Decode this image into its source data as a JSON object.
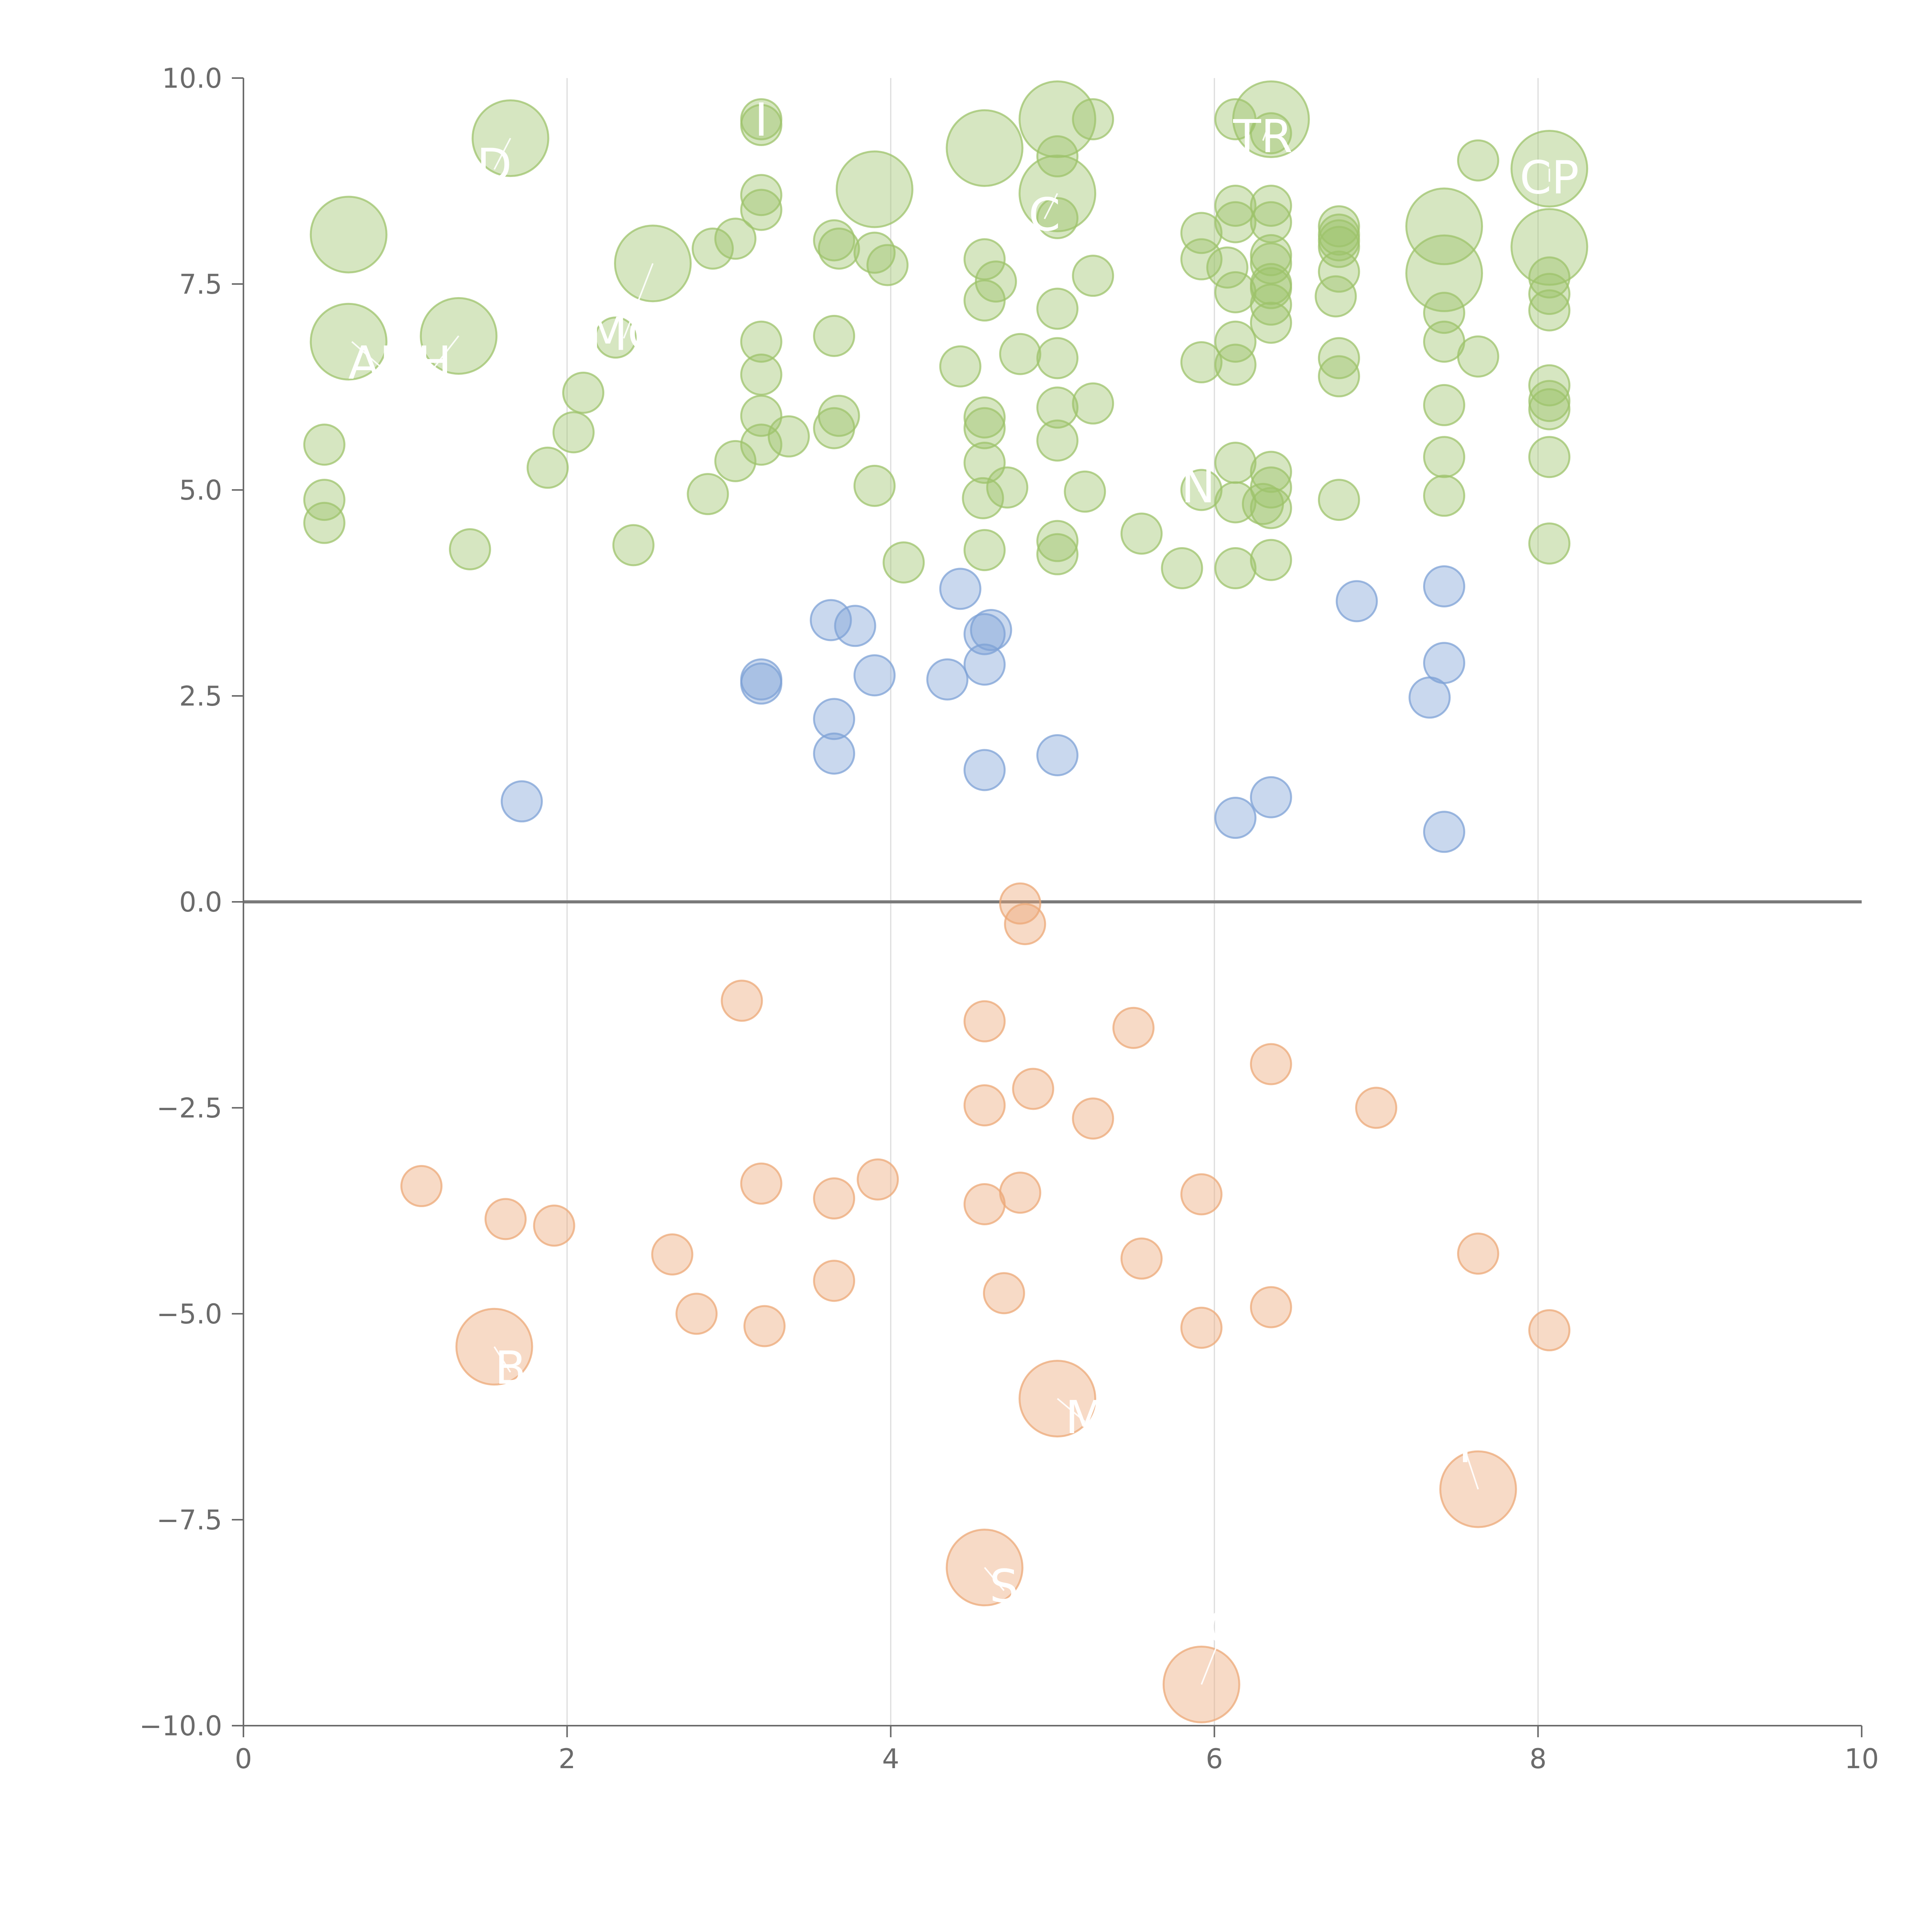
{
  "chart_data": {
    "type": "scatter",
    "title": "",
    "xlabel": "",
    "ylabel": "",
    "xlim": [
      0,
      10
    ],
    "ylim": [
      -10,
      10
    ],
    "x_ticks": [
      0,
      2,
      4,
      6,
      8,
      10
    ],
    "y_ticks": [
      -10,
      -7.5,
      -5,
      -2.5,
      0,
      2.5,
      5,
      7.5,
      10
    ],
    "x_tick_labels": [
      "0",
      "2",
      "4",
      "6",
      "8",
      "10"
    ],
    "y_tick_labels": [
      "−10.0",
      "−7.5",
      "−5.0",
      "−2.5",
      "0.0",
      "2.5",
      "5.0",
      "7.5",
      "10.0"
    ],
    "vertical_gridlines": [
      2,
      4,
      6,
      8
    ],
    "zero_line": 0,
    "colors": {
      "positive": "#9dc36b",
      "neutral": "#7ea2d6",
      "negative": "#eca877",
      "label": "#ffffff",
      "axis": "#6b6b6b",
      "grid": "#dcdcdc",
      "zero_line": "#7a7a7a"
    },
    "series": [
      {
        "name": "positive",
        "color": "#9dc36b",
        "points": [
          {
            "x": 0.65,
            "y": 8.1,
            "s": 3
          },
          {
            "x": 0.65,
            "y": 6.8,
            "s": 3
          },
          {
            "x": 1.33,
            "y": 6.87,
            "s": 3
          },
          {
            "x": 1.65,
            "y": 9.27,
            "s": 3
          },
          {
            "x": 2.53,
            "y": 7.75,
            "s": 3
          },
          {
            "x": 3.9,
            "y": 8.65,
            "s": 3
          },
          {
            "x": 4.58,
            "y": 9.15,
            "s": 3
          },
          {
            "x": 5.03,
            "y": 9.5,
            "s": 3
          },
          {
            "x": 5.03,
            "y": 8.6,
            "s": 3
          },
          {
            "x": 6.35,
            "y": 9.5,
            "s": 3
          },
          {
            "x": 7.42,
            "y": 8.2,
            "s": 3
          },
          {
            "x": 7.42,
            "y": 7.63,
            "s": 3
          },
          {
            "x": 8.07,
            "y": 8.9,
            "s": 3
          },
          {
            "x": 8.07,
            "y": 7.95,
            "s": 3
          },
          {
            "x": 0.5,
            "y": 5.55,
            "s": 1
          },
          {
            "x": 0.5,
            "y": 4.88,
            "s": 1
          },
          {
            "x": 0.5,
            "y": 4.6,
            "s": 1
          },
          {
            "x": 1.4,
            "y": 4.28,
            "s": 1
          },
          {
            "x": 1.88,
            "y": 5.27,
            "s": 1
          },
          {
            "x": 2.04,
            "y": 5.7,
            "s": 1
          },
          {
            "x": 2.1,
            "y": 6.18,
            "s": 1
          },
          {
            "x": 2.3,
            "y": 6.85,
            "s": 1
          },
          {
            "x": 2.41,
            "y": 4.33,
            "s": 1
          },
          {
            "x": 2.87,
            "y": 4.95,
            "s": 1
          },
          {
            "x": 2.9,
            "y": 7.93,
            "s": 1
          },
          {
            "x": 3.04,
            "y": 5.35,
            "s": 1
          },
          {
            "x": 3.04,
            "y": 8.05,
            "s": 1
          },
          {
            "x": 3.2,
            "y": 9.5,
            "s": 1
          },
          {
            "x": 3.2,
            "y": 9.43,
            "s": 1
          },
          {
            "x": 3.2,
            "y": 8.58,
            "s": 1
          },
          {
            "x": 3.2,
            "y": 8.4,
            "s": 1
          },
          {
            "x": 3.2,
            "y": 6.8,
            "s": 1
          },
          {
            "x": 3.2,
            "y": 6.4,
            "s": 1
          },
          {
            "x": 3.2,
            "y": 5.9,
            "s": 1
          },
          {
            "x": 3.2,
            "y": 5.55,
            "s": 1
          },
          {
            "x": 3.37,
            "y": 5.65,
            "s": 1
          },
          {
            "x": 3.65,
            "y": 8.03,
            "s": 1
          },
          {
            "x": 3.68,
            "y": 7.93,
            "s": 1
          },
          {
            "x": 3.65,
            "y": 6.87,
            "s": 1
          },
          {
            "x": 3.68,
            "y": 5.9,
            "s": 1
          },
          {
            "x": 3.65,
            "y": 5.75,
            "s": 1
          },
          {
            "x": 3.9,
            "y": 7.88,
            "s": 1
          },
          {
            "x": 3.98,
            "y": 7.73,
            "s": 1
          },
          {
            "x": 3.9,
            "y": 5.05,
            "s": 1
          },
          {
            "x": 4.08,
            "y": 4.12,
            "s": 1
          },
          {
            "x": 4.43,
            "y": 6.5,
            "s": 1
          },
          {
            "x": 4.58,
            "y": 7.8,
            "s": 1
          },
          {
            "x": 4.58,
            "y": 7.3,
            "s": 1
          },
          {
            "x": 4.65,
            "y": 7.53,
            "s": 1
          },
          {
            "x": 4.58,
            "y": 5.88,
            "s": 1
          },
          {
            "x": 4.58,
            "y": 5.75,
            "s": 1
          },
          {
            "x": 4.58,
            "y": 5.33,
            "s": 1
          },
          {
            "x": 4.57,
            "y": 4.9,
            "s": 1
          },
          {
            "x": 4.58,
            "y": 4.27,
            "s": 1
          },
          {
            "x": 4.72,
            "y": 5.03,
            "s": 1
          },
          {
            "x": 4.8,
            "y": 6.65,
            "s": 1
          },
          {
            "x": 5.03,
            "y": 9.05,
            "s": 1
          },
          {
            "x": 5.03,
            "y": 8.3,
            "s": 1
          },
          {
            "x": 5.03,
            "y": 7.2,
            "s": 1
          },
          {
            "x": 5.03,
            "y": 6.6,
            "s": 1
          },
          {
            "x": 5.03,
            "y": 6.0,
            "s": 1
          },
          {
            "x": 5.03,
            "y": 5.6,
            "s": 1
          },
          {
            "x": 5.03,
            "y": 4.38,
            "s": 1
          },
          {
            "x": 5.03,
            "y": 4.22,
            "s": 1
          },
          {
            "x": 5.25,
            "y": 9.5,
            "s": 1
          },
          {
            "x": 5.25,
            "y": 7.6,
            "s": 1
          },
          {
            "x": 5.25,
            "y": 6.05,
            "s": 1
          },
          {
            "x": 5.2,
            "y": 4.98,
            "s": 1
          },
          {
            "x": 5.55,
            "y": 4.47,
            "s": 1
          },
          {
            "x": 5.8,
            "y": 4.05,
            "s": 1
          },
          {
            "x": 5.92,
            "y": 8.12,
            "s": 1
          },
          {
            "x": 5.92,
            "y": 7.8,
            "s": 1
          },
          {
            "x": 5.92,
            "y": 6.55,
            "s": 1
          },
          {
            "x": 5.92,
            "y": 5.0,
            "s": 1
          },
          {
            "x": 6.13,
            "y": 9.5,
            "s": 1
          },
          {
            "x": 6.13,
            "y": 8.45,
            "s": 1
          },
          {
            "x": 6.13,
            "y": 8.25,
            "s": 1
          },
          {
            "x": 6.08,
            "y": 7.7,
            "s": 1
          },
          {
            "x": 6.13,
            "y": 7.4,
            "s": 1
          },
          {
            "x": 6.13,
            "y": 6.8,
            "s": 1
          },
          {
            "x": 6.13,
            "y": 6.52,
            "s": 1
          },
          {
            "x": 6.13,
            "y": 5.33,
            "s": 1
          },
          {
            "x": 6.13,
            "y": 4.85,
            "s": 1
          },
          {
            "x": 6.13,
            "y": 4.05,
            "s": 1
          },
          {
            "x": 6.35,
            "y": 9.33,
            "s": 1
          },
          {
            "x": 6.35,
            "y": 8.45,
            "s": 1
          },
          {
            "x": 6.35,
            "y": 8.25,
            "s": 1
          },
          {
            "x": 6.35,
            "y": 7.85,
            "s": 1
          },
          {
            "x": 6.35,
            "y": 7.75,
            "s": 1
          },
          {
            "x": 6.35,
            "y": 7.5,
            "s": 1
          },
          {
            "x": 6.35,
            "y": 7.45,
            "s": 1
          },
          {
            "x": 6.35,
            "y": 7.25,
            "s": 1
          },
          {
            "x": 6.35,
            "y": 7.03,
            "s": 1
          },
          {
            "x": 6.35,
            "y": 5.22,
            "s": 1
          },
          {
            "x": 6.35,
            "y": 5.03,
            "s": 1
          },
          {
            "x": 6.35,
            "y": 4.78,
            "s": 1
          },
          {
            "x": 6.3,
            "y": 4.83,
            "s": 1
          },
          {
            "x": 6.35,
            "y": 4.15,
            "s": 1
          },
          {
            "x": 6.77,
            "y": 8.2,
            "s": 1
          },
          {
            "x": 6.77,
            "y": 8.1,
            "s": 1
          },
          {
            "x": 6.77,
            "y": 8.03,
            "s": 1
          },
          {
            "x": 6.77,
            "y": 7.95,
            "s": 1
          },
          {
            "x": 6.77,
            "y": 7.65,
            "s": 1
          },
          {
            "x": 6.75,
            "y": 7.35,
            "s": 1
          },
          {
            "x": 6.77,
            "y": 6.6,
            "s": 1
          },
          {
            "x": 6.77,
            "y": 6.38,
            "s": 1
          },
          {
            "x": 6.77,
            "y": 4.88,
            "s": 1
          },
          {
            "x": 7.42,
            "y": 7.15,
            "s": 1
          },
          {
            "x": 7.42,
            "y": 6.8,
            "s": 1
          },
          {
            "x": 7.42,
            "y": 6.03,
            "s": 1
          },
          {
            "x": 7.42,
            "y": 5.4,
            "s": 1
          },
          {
            "x": 7.42,
            "y": 4.93,
            "s": 1
          },
          {
            "x": 7.63,
            "y": 9.0,
            "s": 1
          },
          {
            "x": 7.63,
            "y": 6.62,
            "s": 1
          },
          {
            "x": 8.07,
            "y": 7.58,
            "s": 1
          },
          {
            "x": 8.07,
            "y": 7.38,
            "s": 1
          },
          {
            "x": 8.07,
            "y": 7.18,
            "s": 1
          },
          {
            "x": 8.07,
            "y": 6.27,
            "s": 1
          },
          {
            "x": 8.07,
            "y": 6.08,
            "s": 1
          },
          {
            "x": 8.07,
            "y": 5.98,
            "s": 1
          },
          {
            "x": 8.07,
            "y": 5.4,
            "s": 1
          },
          {
            "x": 8.07,
            "y": 4.35,
            "s": 1
          }
        ]
      },
      {
        "name": "neutral",
        "color": "#7ea2d6",
        "points": [
          {
            "x": 1.72,
            "y": 1.22,
            "s": 1
          },
          {
            "x": 3.2,
            "y": 2.7,
            "s": 1
          },
          {
            "x": 3.2,
            "y": 2.65,
            "s": 1
          },
          {
            "x": 3.63,
            "y": 3.42,
            "s": 1
          },
          {
            "x": 3.78,
            "y": 3.35,
            "s": 1
          },
          {
            "x": 3.65,
            "y": 2.22,
            "s": 1
          },
          {
            "x": 3.65,
            "y": 1.8,
            "s": 1
          },
          {
            "x": 3.9,
            "y": 2.75,
            "s": 1
          },
          {
            "x": 4.35,
            "y": 2.7,
            "s": 1
          },
          {
            "x": 4.43,
            "y": 3.8,
            "s": 1
          },
          {
            "x": 4.58,
            "y": 3.25,
            "s": 1
          },
          {
            "x": 4.62,
            "y": 3.3,
            "s": 1
          },
          {
            "x": 4.58,
            "y": 2.88,
            "s": 1
          },
          {
            "x": 4.58,
            "y": 1.6,
            "s": 1
          },
          {
            "x": 5.03,
            "y": 1.78,
            "s": 1
          },
          {
            "x": 6.13,
            "y": 1.02,
            "s": 1
          },
          {
            "x": 6.35,
            "y": 1.27,
            "s": 1
          },
          {
            "x": 6.88,
            "y": 3.65,
            "s": 1
          },
          {
            "x": 7.33,
            "y": 2.48,
            "s": 1
          },
          {
            "x": 7.42,
            "y": 3.83,
            "s": 1
          },
          {
            "x": 7.42,
            "y": 2.9,
            "s": 1
          },
          {
            "x": 7.42,
            "y": 0.85,
            "s": 1
          }
        ]
      },
      {
        "name": "negative",
        "color": "#eca877",
        "points": [
          {
            "x": 4.8,
            "y": -0.02,
            "s": 1
          },
          {
            "x": 4.83,
            "y": -0.27,
            "s": 1
          },
          {
            "x": 3.08,
            "y": -1.2,
            "s": 1
          },
          {
            "x": 4.58,
            "y": -1.45,
            "s": 1
          },
          {
            "x": 5.5,
            "y": -1.53,
            "s": 1
          },
          {
            "x": 6.35,
            "y": -1.97,
            "s": 1
          },
          {
            "x": 4.58,
            "y": -2.47,
            "s": 1
          },
          {
            "x": 4.88,
            "y": -2.27,
            "s": 1
          },
          {
            "x": 5.25,
            "y": -2.63,
            "s": 1
          },
          {
            "x": 7.0,
            "y": -2.5,
            "s": 1
          },
          {
            "x": 1.1,
            "y": -3.45,
            "s": 1
          },
          {
            "x": 1.62,
            "y": -3.85,
            "s": 1
          },
          {
            "x": 1.92,
            "y": -3.93,
            "s": 1
          },
          {
            "x": 2.65,
            "y": -4.28,
            "s": 1
          },
          {
            "x": 3.2,
            "y": -3.42,
            "s": 1
          },
          {
            "x": 3.65,
            "y": -3.6,
            "s": 1
          },
          {
            "x": 3.92,
            "y": -3.37,
            "s": 1
          },
          {
            "x": 3.65,
            "y": -4.6,
            "s": 1
          },
          {
            "x": 2.8,
            "y": -5.0,
            "s": 1
          },
          {
            "x": 3.22,
            "y": -5.15,
            "s": 1
          },
          {
            "x": 4.58,
            "y": -3.67,
            "s": 1
          },
          {
            "x": 4.8,
            "y": -3.53,
            "s": 1
          },
          {
            "x": 4.7,
            "y": -4.75,
            "s": 1
          },
          {
            "x": 5.55,
            "y": -4.33,
            "s": 1
          },
          {
            "x": 5.92,
            "y": -3.55,
            "s": 1
          },
          {
            "x": 5.92,
            "y": -5.17,
            "s": 1
          },
          {
            "x": 6.35,
            "y": -4.92,
            "s": 1
          },
          {
            "x": 7.63,
            "y": -4.27,
            "s": 1
          },
          {
            "x": 8.07,
            "y": -5.2,
            "s": 1
          },
          {
            "x": 1.55,
            "y": -5.4,
            "s": 3
          },
          {
            "x": 5.03,
            "y": -6.03,
            "s": 3
          },
          {
            "x": 7.63,
            "y": -7.13,
            "s": 3
          },
          {
            "x": 4.58,
            "y": -8.08,
            "s": 3
          },
          {
            "x": 5.92,
            "y": -9.5,
            "s": 3
          }
        ]
      }
    ],
    "labels": [
      {
        "text": "AH",
        "x": 0.85,
        "y": 6.35,
        "anchor_x": 0.67,
        "anchor_y": 6.8
      },
      {
        "text": "H",
        "x": 1.18,
        "y": 6.35,
        "anchor_x": 1.33,
        "anchor_y": 6.87
      },
      {
        "text": "D",
        "x": 1.55,
        "y": 8.75,
        "anchor_x": 1.65,
        "anchor_y": 9.27
      },
      {
        "text": "MC",
        "x": 2.35,
        "y": 6.7,
        "anchor_x": 2.53,
        "anchor_y": 7.75
      },
      {
        "text": "I",
        "x": 3.2,
        "y": 9.3,
        "anchor_x": 3.2,
        "anchor_y": 9.45
      },
      {
        "text": "C",
        "x": 4.95,
        "y": 8.15,
        "anchor_x": 5.03,
        "anchor_y": 8.6
      },
      {
        "text": "TR",
        "x": 6.3,
        "y": 9.1,
        "anchor_x": 6.35,
        "anchor_y": 9.5
      },
      {
        "text": "CP",
        "x": 8.07,
        "y": 8.6,
        "anchor_x": 8.07,
        "anchor_y": 8.9
      },
      {
        "text": "N",
        "x": 5.9,
        "y": 4.85,
        "anchor_x": 5.92,
        "anchor_y": 5.0
      },
      {
        "text": "B",
        "x": 1.65,
        "y": -5.85,
        "anchor_x": 1.55,
        "anchor_y": -5.4
      },
      {
        "text": "M",
        "x": 5.2,
        "y": -6.45,
        "anchor_x": 5.03,
        "anchor_y": -6.03
      },
      {
        "text": "T",
        "x": 7.55,
        "y": -6.8,
        "anchor_x": 7.63,
        "anchor_y": -7.13
      },
      {
        "text": "S",
        "x": 4.7,
        "y": -8.5,
        "anchor_x": 4.58,
        "anchor_y": -8.08
      },
      {
        "text": "C",
        "x": 6.05,
        "y": -9.0,
        "anchor_x": 5.92,
        "anchor_y": -9.5
      }
    ]
  }
}
